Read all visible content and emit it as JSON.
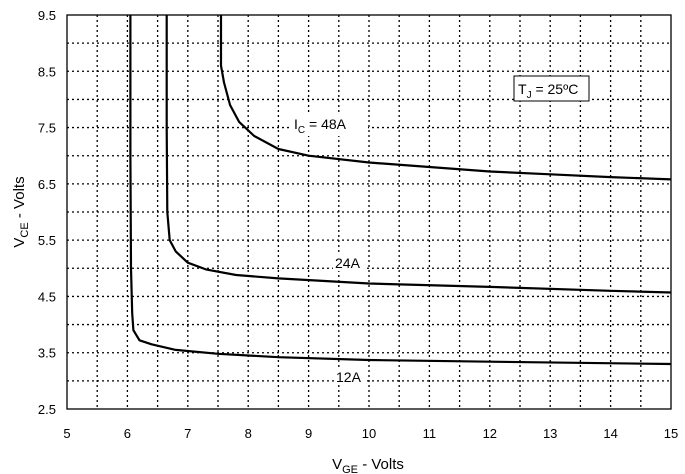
{
  "chart_data": {
    "type": "line",
    "xlabel": {
      "main": "V",
      "sub": "GE",
      "rest": " - Volts"
    },
    "ylabel": {
      "main": "V",
      "sub": "CE",
      "rest": " - Volts"
    },
    "xlim": [
      5,
      15
    ],
    "ylim": [
      2.5,
      9.5
    ],
    "xticks": [
      "5",
      "6",
      "7",
      "8",
      "9",
      "10",
      "11",
      "12",
      "13",
      "14",
      "15"
    ],
    "yticks": [
      "2.5",
      "3.5",
      "4.5",
      "5.5",
      "6.5",
      "7.5",
      "8.5",
      "9.5"
    ],
    "grid": {
      "x_step": 0.5,
      "y_step": 0.5,
      "style": "dotted"
    },
    "annotation": {
      "main": "T",
      "sub": "J",
      "rest": " = 25ºC"
    },
    "series": [
      {
        "name": "12A",
        "label_main": "12A",
        "label_sub": "",
        "label_prefix": "",
        "points": [
          [
            6.05,
            9.5
          ],
          [
            6.05,
            7.0
          ],
          [
            6.06,
            5.0
          ],
          [
            6.08,
            4.2
          ],
          [
            6.1,
            3.9
          ],
          [
            6.2,
            3.72
          ],
          [
            6.4,
            3.65
          ],
          [
            6.8,
            3.55
          ],
          [
            7.5,
            3.48
          ],
          [
            8.5,
            3.42
          ],
          [
            10,
            3.37
          ],
          [
            12,
            3.34
          ],
          [
            15,
            3.3
          ]
        ]
      },
      {
        "name": "24A",
        "label_main": "24A",
        "label_sub": "",
        "label_prefix": "",
        "points": [
          [
            6.65,
            9.5
          ],
          [
            6.65,
            7.5
          ],
          [
            6.66,
            6.0
          ],
          [
            6.7,
            5.5
          ],
          [
            6.8,
            5.3
          ],
          [
            7.0,
            5.1
          ],
          [
            7.3,
            4.98
          ],
          [
            7.8,
            4.88
          ],
          [
            8.5,
            4.82
          ],
          [
            10,
            4.73
          ],
          [
            12,
            4.67
          ],
          [
            14,
            4.6
          ],
          [
            15,
            4.57
          ]
        ]
      },
      {
        "name": "48A",
        "label_main": " = 48A",
        "label_sub": "C",
        "label_prefix": "I",
        "points": [
          [
            7.55,
            9.5
          ],
          [
            7.55,
            8.6
          ],
          [
            7.6,
            8.3
          ],
          [
            7.7,
            7.9
          ],
          [
            7.85,
            7.6
          ],
          [
            8.1,
            7.35
          ],
          [
            8.5,
            7.12
          ],
          [
            9.0,
            7.0
          ],
          [
            10,
            6.88
          ],
          [
            11,
            6.8
          ],
          [
            12,
            6.72
          ],
          [
            13,
            6.67
          ],
          [
            14,
            6.62
          ],
          [
            15,
            6.58
          ]
        ]
      }
    ]
  }
}
